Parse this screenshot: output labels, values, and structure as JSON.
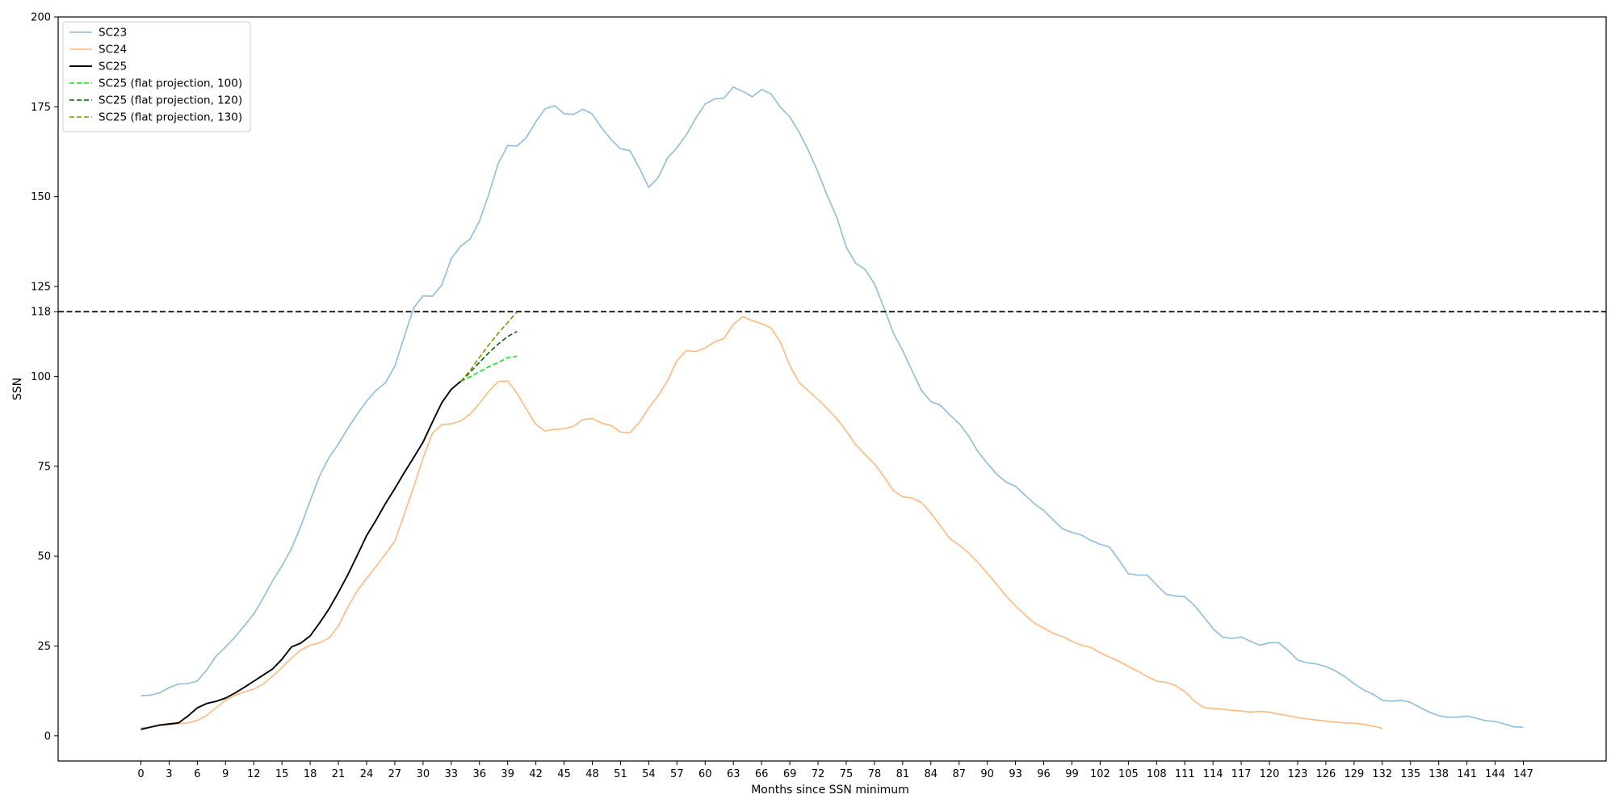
{
  "chart_data": {
    "type": "line",
    "title": "",
    "xlabel": "Months since SSN minimum",
    "ylabel": "SSN",
    "xlim": [
      -8.8,
      155.8
    ],
    "ylim": [
      -7,
      200
    ],
    "x_ticks": [
      0,
      3,
      6,
      9,
      12,
      15,
      18,
      21,
      24,
      27,
      30,
      33,
      36,
      39,
      42,
      45,
      48,
      51,
      54,
      57,
      60,
      63,
      66,
      69,
      72,
      75,
      78,
      81,
      84,
      87,
      90,
      93,
      96,
      99,
      102,
      105,
      108,
      111,
      114,
      117,
      120,
      123,
      126,
      129,
      132,
      135,
      138,
      141,
      144,
      147
    ],
    "y_ticks": [
      0,
      25,
      50,
      75,
      100,
      118,
      125,
      150,
      175,
      200
    ],
    "grid": false,
    "legend_position": "top-left",
    "reference_line": {
      "y": 118,
      "color": "#000000",
      "style": "dashed"
    },
    "series": [
      {
        "name": "SC23",
        "color": "#8fbcdc",
        "style": "solid",
        "values": [
          11.2,
          11.3,
          12.0,
          13.4,
          14.4,
          14.5,
          15.3,
          18.3,
          22.2,
          24.7,
          27.5,
          30.6,
          33.9,
          38.3,
          43.1,
          47.3,
          52.0,
          58.3,
          65.4,
          72.3,
          77.4,
          81.2,
          85.5,
          89.5,
          93.1,
          96.1,
          98.2,
          102.8,
          111.0,
          119.0,
          122.4,
          122.3,
          125.4,
          132.8,
          136.2,
          138.2,
          143.2,
          150.7,
          159.3,
          164.2,
          164.1,
          166.5,
          170.9,
          174.5,
          175.3,
          173.1,
          172.9,
          174.3,
          173.0,
          169.1,
          165.9,
          163.3,
          162.8,
          158.0,
          152.6,
          155.3,
          160.8,
          163.6,
          167.2,
          171.8,
          175.8,
          177.2,
          177.4,
          180.5,
          179.3,
          177.8,
          179.8,
          178.6,
          174.9,
          172.2,
          167.9,
          162.7,
          156.8,
          150.2,
          144.2,
          136.0,
          131.5,
          129.8,
          125.7,
          119.2,
          112.1,
          107.2,
          101.6,
          96.1,
          93.0,
          92.0,
          89.3,
          86.9,
          83.5,
          79.1,
          75.8,
          72.8,
          70.6,
          69.4,
          67.0,
          64.6,
          62.7,
          60.1,
          57.6,
          56.6,
          55.9,
          54.4,
          53.3,
          52.5,
          48.9,
          45.1,
          44.7,
          44.7,
          42.0,
          39.4,
          38.9,
          38.7,
          36.3,
          33.2,
          29.8,
          27.5,
          27.1,
          27.5,
          26.3,
          25.2,
          25.9,
          25.9,
          23.7,
          21.1,
          20.3,
          20.0,
          19.3,
          18.1,
          16.5,
          14.5,
          12.8,
          11.6,
          9.9,
          9.6,
          9.9,
          9.3,
          7.9,
          6.6,
          5.6,
          5.2,
          5.2,
          5.5,
          4.9,
          4.2,
          4.0,
          3.3,
          2.5,
          2.4
        ]
      },
      {
        "name": "SC24",
        "color": "#ffb97f",
        "style": "solid",
        "values": [
          2.2,
          2.4,
          2.9,
          3.1,
          3.4,
          3.6,
          4.3,
          5.7,
          7.8,
          9.9,
          11.3,
          12.2,
          13.0,
          14.4,
          16.6,
          19.0,
          21.6,
          23.9,
          25.2,
          25.9,
          27.2,
          30.6,
          35.8,
          40.3,
          43.8,
          47.1,
          50.6,
          54.1,
          61.6,
          69.2,
          77.3,
          84.2,
          86.6,
          86.8,
          87.6,
          89.5,
          92.5,
          95.9,
          98.6,
          98.7,
          95.3,
          90.8,
          86.6,
          84.8,
          85.3,
          85.4,
          86.1,
          88.0,
          88.3,
          87.0,
          86.3,
          84.5,
          84.3,
          87.2,
          91.3,
          94.6,
          98.8,
          104.4,
          107.2,
          106.9,
          107.9,
          109.6,
          110.6,
          114.5,
          116.6,
          115.5,
          114.7,
          113.5,
          109.5,
          103.0,
          98.3,
          95.9,
          93.6,
          91.0,
          88.2,
          84.8,
          81.0,
          78.3,
          75.7,
          72.1,
          68.3,
          66.5,
          66.2,
          64.9,
          62.0,
          58.5,
          54.9,
          53.1,
          50.9,
          48.2,
          45.2,
          42.1,
          38.9,
          36.1,
          33.7,
          31.4,
          30.0,
          28.5,
          27.6,
          26.3,
          25.2,
          24.6,
          23.1,
          21.9,
          20.7,
          19.3,
          18.0,
          16.5,
          15.2,
          14.9,
          14.0,
          12.3,
          9.7,
          7.9,
          7.6,
          7.4,
          7.1,
          6.9,
          6.6,
          6.8,
          6.6,
          6.0,
          5.6,
          5.1,
          4.7,
          4.4,
          4.1,
          3.8,
          3.6,
          3.5,
          3.2,
          2.7,
          2.1
        ]
      },
      {
        "name": "SC25",
        "color": "#000000",
        "style": "solid",
        "values": [
          1.8,
          2.4,
          3.0,
          3.3,
          3.6,
          5.5,
          7.8,
          9.0,
          9.6,
          10.5,
          11.9,
          13.5,
          15.2,
          16.9,
          18.6,
          21.3,
          24.7,
          25.8,
          27.8,
          31.4,
          35.3,
          39.9,
          44.8,
          50.2,
          55.7,
          60.0,
          64.6,
          68.8,
          73.2,
          77.4,
          81.7,
          87.3,
          92.7,
          96.4,
          98.6
        ]
      },
      {
        "name": "SC25 (flat projection, 100)",
        "color": "#00ee00",
        "style": "dashed",
        "x": [
          34,
          35,
          36,
          37,
          38,
          39,
          40
        ],
        "values": [
          98.6,
          99.9,
          101.3,
          102.7,
          103.9,
          105.2,
          105.6
        ]
      },
      {
        "name": "SC25 (flat projection, 120)",
        "color": "#006400",
        "style": "dashed",
        "x": [
          34,
          35,
          36,
          37,
          38,
          39,
          40
        ],
        "values": [
          98.6,
          101.1,
          103.9,
          106.6,
          109.0,
          111.1,
          112.5
        ]
      },
      {
        "name": "SC25 (flat projection, 130)",
        "color": "#8b8b00",
        "style": "dashed",
        "x": [
          34,
          35,
          36,
          37,
          38,
          39,
          40
        ],
        "values": [
          98.6,
          101.6,
          105.3,
          108.8,
          112.0,
          115.0,
          118.0
        ]
      }
    ]
  }
}
